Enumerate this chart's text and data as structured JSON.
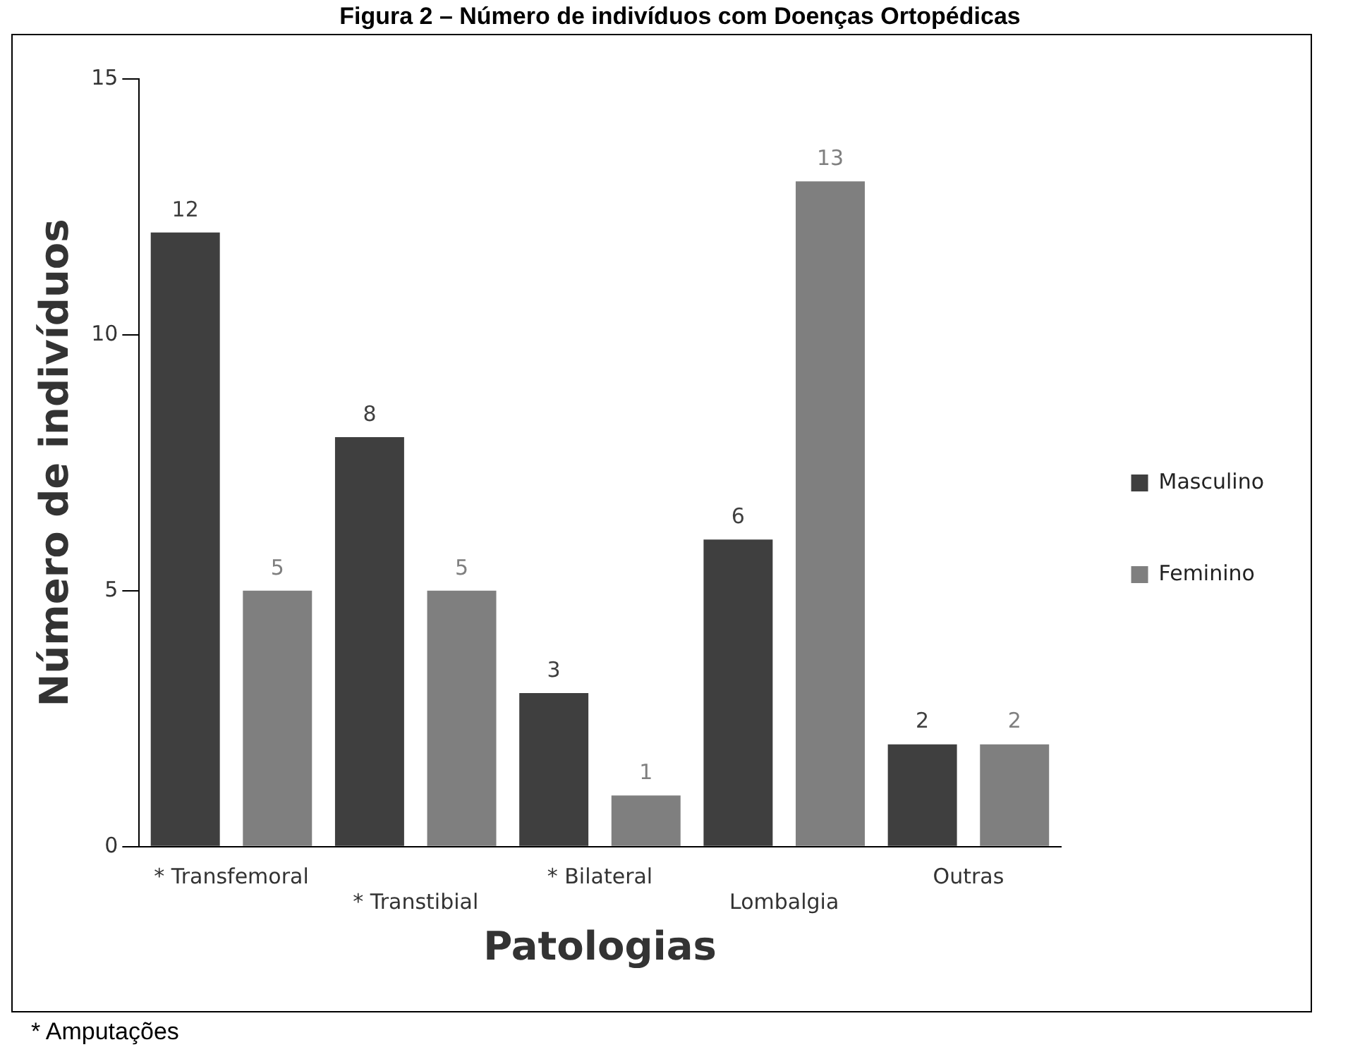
{
  "chart_data": {
    "type": "bar",
    "title": "Figura 2 – Número de indivíduos com Doenças Ortopédicas",
    "xlabel": "Patologias",
    "ylabel": "Número de indivíduos",
    "categories": [
      "* Transfemoral",
      "* Transtibial",
      "* Bilateral",
      "Lombalgia",
      "Outras"
    ],
    "series": [
      {
        "name": "Masculino",
        "color": "#3f3f3f",
        "values": [
          12,
          8,
          3,
          6,
          2
        ]
      },
      {
        "name": "Feminino",
        "color": "#7f7f7f",
        "values": [
          5,
          5,
          1,
          13,
          2
        ]
      }
    ],
    "ylim": [
      0,
      15
    ],
    "yticks": [
      0,
      5,
      10,
      15
    ],
    "grid": false,
    "legend": "right",
    "data_labels": true,
    "annotations": [
      "* Amputações"
    ]
  }
}
